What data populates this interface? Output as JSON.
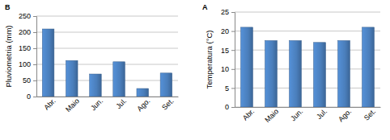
{
  "chart_data": [
    {
      "type": "bar",
      "title": "B",
      "ylabel": "Pluviometria (mm)",
      "categories": [
        "Abr.",
        "Maio",
        "Jun.",
        "Jul.",
        "Ago.",
        "Set."
      ],
      "values": [
        210,
        112,
        70,
        108,
        25,
        73
      ],
      "color": "#4a7ebb",
      "ylim": [
        0,
        250
      ],
      "yticks": [
        0,
        50,
        100,
        150,
        200,
        250
      ],
      "grid": true
    },
    {
      "type": "bar",
      "title": "A",
      "ylabel": "Temperatura (°C)",
      "categories": [
        "Abr.",
        "Maio",
        "Jun.",
        "Jul.",
        "Ago.",
        "Set."
      ],
      "values": [
        21,
        17.5,
        17.5,
        17,
        17.5,
        21
      ],
      "color": "#4a7ebb",
      "ylim": [
        0,
        25
      ],
      "yticks": [
        0,
        5,
        10,
        15,
        20,
        25
      ],
      "grid": true
    }
  ]
}
